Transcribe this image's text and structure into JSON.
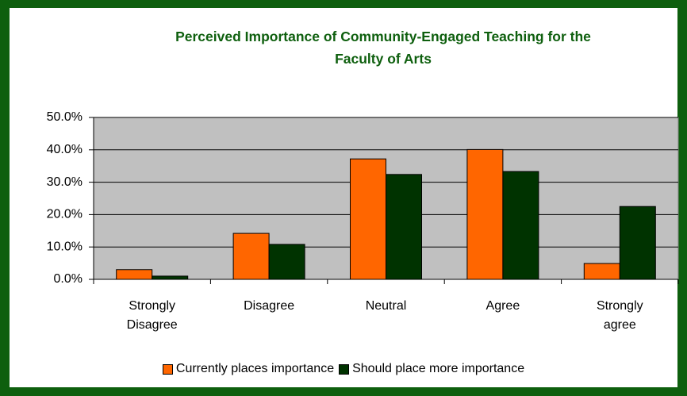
{
  "chart_data": {
    "type": "bar",
    "title": "Perceived Importance of Community-Engaged Teaching for the Faculty of Arts",
    "categories": [
      "Strongly Disagree",
      "Disagree",
      "Neutral",
      "Agree",
      "Strongly agree"
    ],
    "series": [
      {
        "name": "Currently places importance",
        "color": "#ff6600",
        "values": [
          3.0,
          14.2,
          37.2,
          40.1,
          4.9
        ]
      },
      {
        "name": "Should place more importance",
        "color": "#003300",
        "values": [
          1.0,
          10.8,
          32.4,
          33.3,
          22.5
        ]
      }
    ],
    "ylim": [
      0,
      50
    ],
    "yticks": [
      {
        "value": 0,
        "label": "0.0%"
      },
      {
        "value": 10,
        "label": "10.0%"
      },
      {
        "value": 20,
        "label": "20.0%"
      },
      {
        "value": 30,
        "label": "30.0%"
      },
      {
        "value": 40,
        "label": "40.0%"
      },
      {
        "value": 50,
        "label": "50.0%"
      }
    ],
    "grid": true,
    "legend": "bottom",
    "plot_background": "#c0c0c0"
  }
}
